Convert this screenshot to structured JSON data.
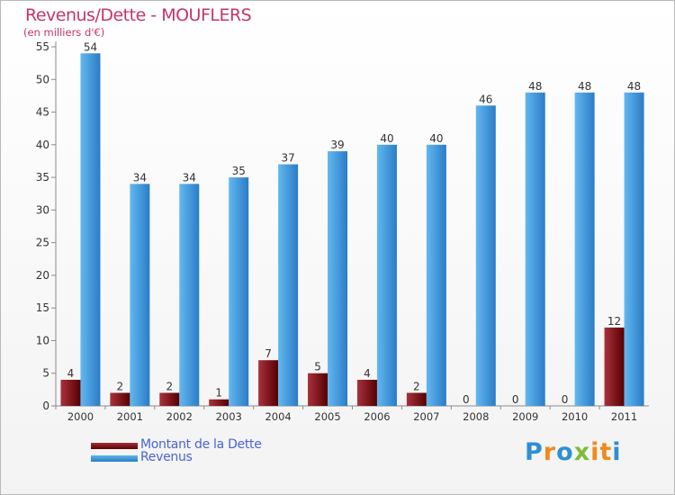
{
  "title": "Revenus/Dette - MOUFLERS",
  "subtitle": "(en milliers d'€)",
  "brand": "Proxiti",
  "brand_colors": [
    "#2e8fd3",
    "#f08a1c",
    "#2e8fd3",
    "#7cbd3a",
    "#f08a1c",
    "#f08a1c",
    "#2e8fd3"
  ],
  "colors": {
    "title": "#c6346b",
    "legend_text": "#4a63d6",
    "debt_light": "#a3303c",
    "debt_dark": "#5a0000",
    "revenue_light": "#5fb5ee",
    "revenue_dark": "#2a7cc4"
  },
  "chart_data": {
    "type": "bar",
    "title": "Revenus/Dette - MOUFLERS",
    "subtitle": "(en milliers d'€)",
    "categories": [
      "2000",
      "2001",
      "2002",
      "2003",
      "2004",
      "2005",
      "2006",
      "2007",
      "2008",
      "2009",
      "2010",
      "2011"
    ],
    "series": [
      {
        "name": "Montant de la Dette",
        "values": [
          4,
          2,
          2,
          1,
          7,
          5,
          4,
          2,
          0,
          0,
          0,
          12
        ]
      },
      {
        "name": "Revenus",
        "values": [
          54,
          34,
          34,
          35,
          37,
          39,
          40,
          40,
          46,
          48,
          48,
          48
        ]
      }
    ],
    "ylim": [
      0,
      55
    ],
    "yticks": [
      0,
      5,
      10,
      15,
      20,
      25,
      30,
      35,
      40,
      45,
      50,
      55
    ],
    "grid": false,
    "legend": "bottom-left"
  }
}
